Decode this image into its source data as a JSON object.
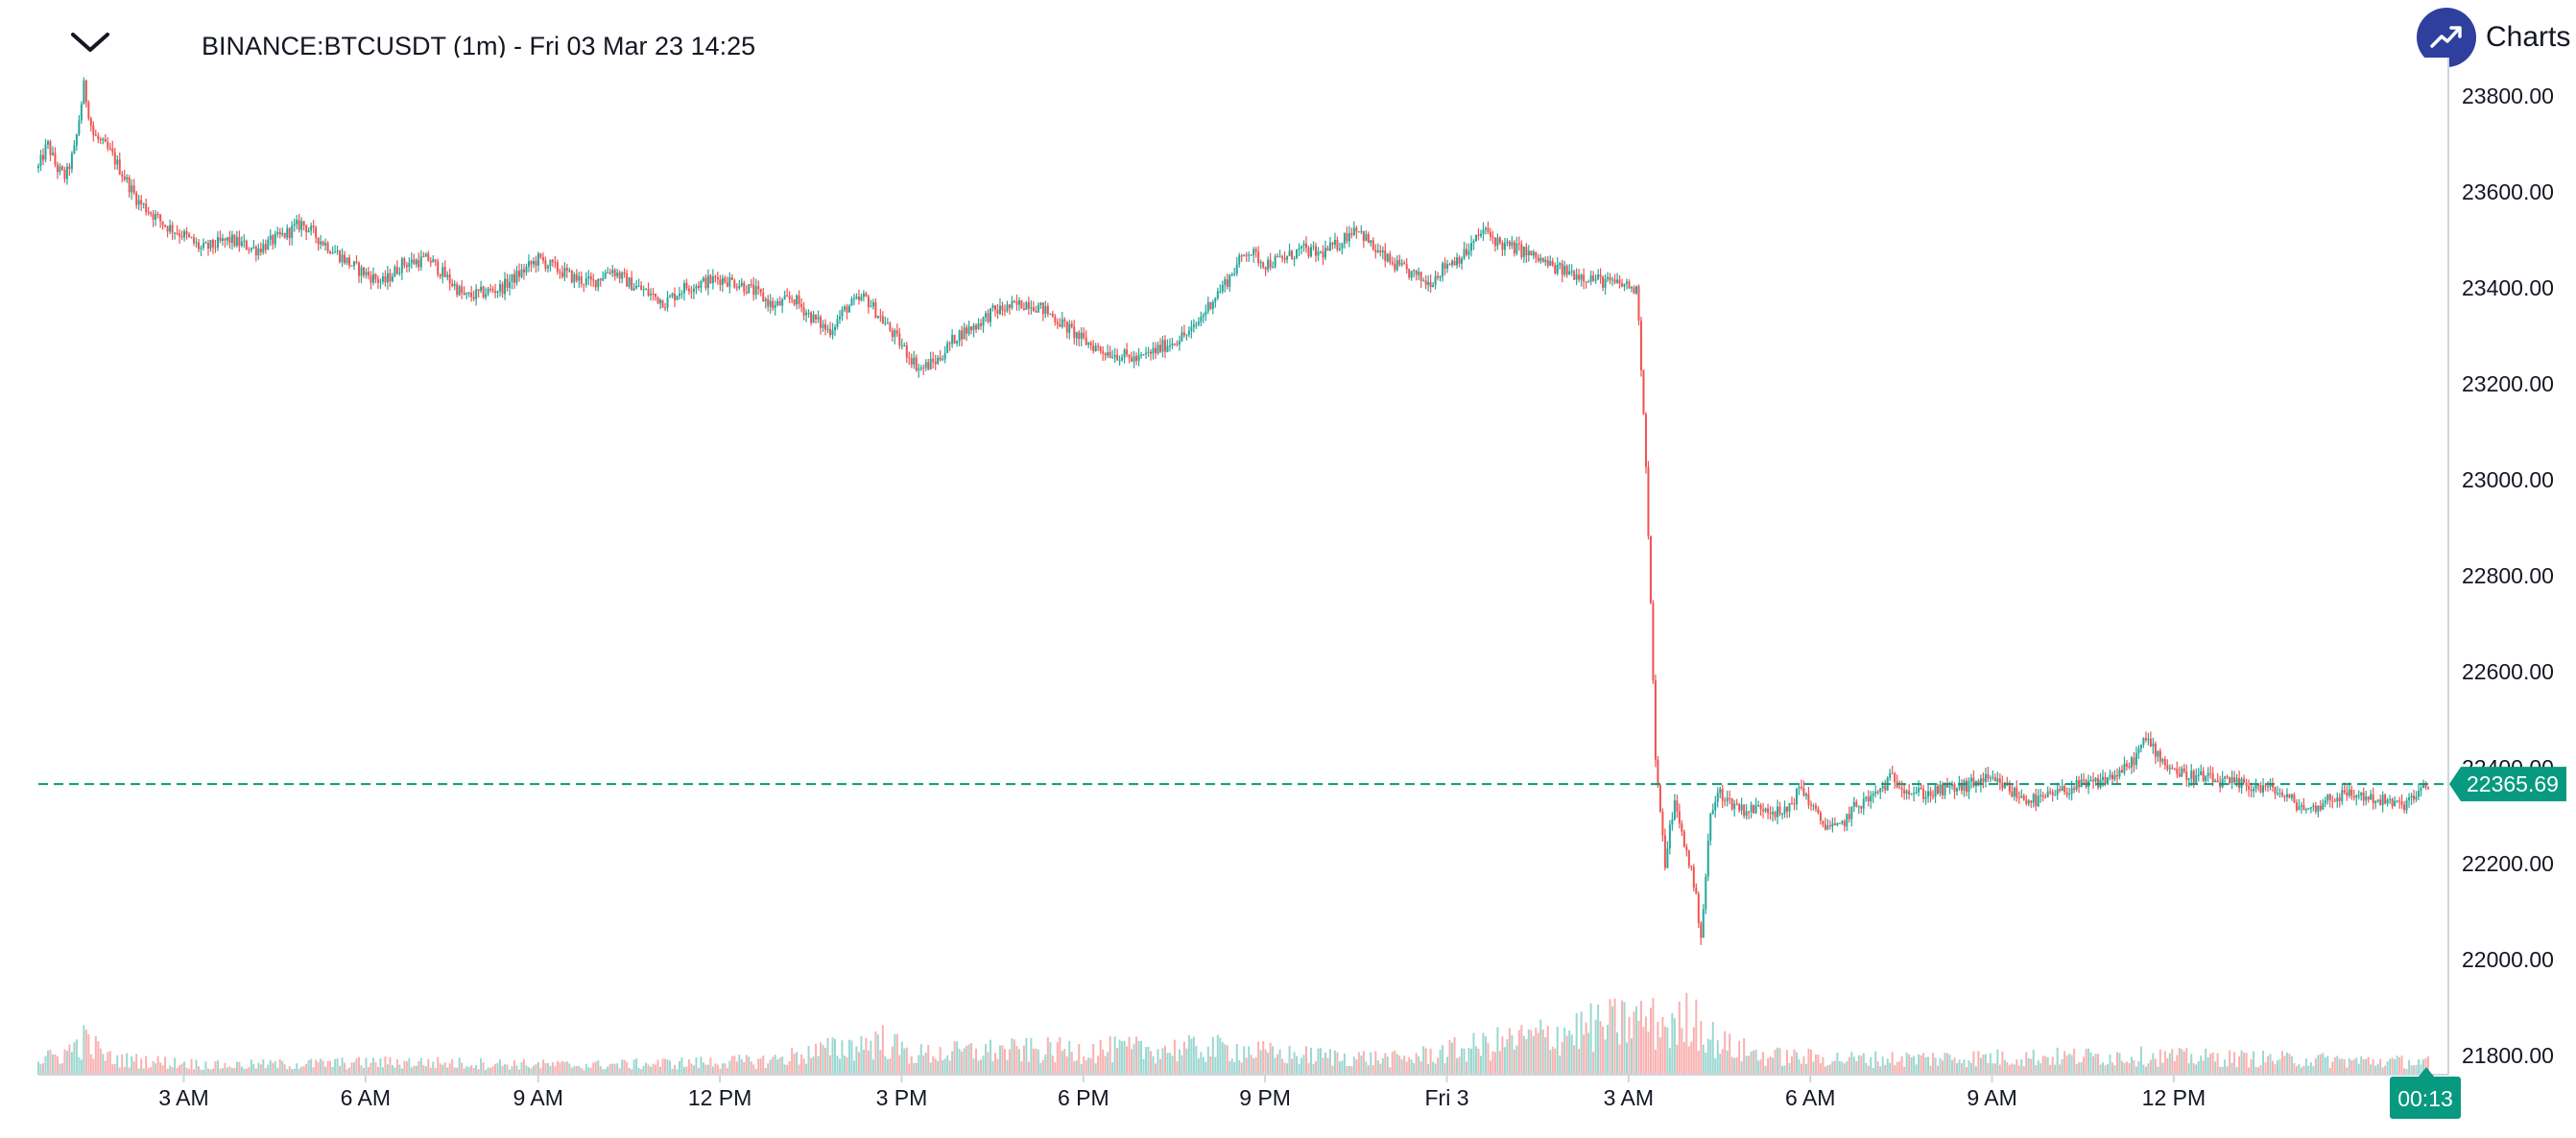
{
  "header": {
    "title": "BINANCE:BTCUSDT (1m) - Fri 03 Mar 23 14:25",
    "collapse_icon": "chevron-down-icon"
  },
  "brand": {
    "label": "Charts p",
    "icon": "trend-up-icon",
    "color": "#2e3f9e"
  },
  "colors": {
    "up": "#26a69a",
    "down": "#ef5350",
    "last_price": "#089981"
  },
  "chart_data": {
    "type": "candlestick",
    "symbol": "BINANCE:BTCUSDT",
    "interval": "1m",
    "ylim": [
      21760,
      23880
    ],
    "y_ticks": [
      "23800.00",
      "23600.00",
      "23400.00",
      "23200.00",
      "23000.00",
      "22800.00",
      "22600.00",
      "22400.00",
      "22200.00",
      "22000.00",
      "21800.00"
    ],
    "x_ticks": [
      "3 AM",
      "6 AM",
      "9 AM",
      "12 PM",
      "3 PM",
      "6 PM",
      "9 PM",
      "Fri 3",
      "3 AM",
      "6 AM",
      "9 AM",
      "12 PM"
    ],
    "last_price": 22365.69,
    "last_price_label": "22365.69",
    "countdown": "00:13",
    "price_path": [
      [
        0,
        23650
      ],
      [
        1,
        23700
      ],
      [
        2,
        23650
      ],
      [
        3,
        23630
      ],
      [
        4,
        23690
      ],
      [
        5,
        23820
      ],
      [
        6,
        23720
      ],
      [
        8,
        23680
      ],
      [
        11,
        23580
      ],
      [
        14,
        23530
      ],
      [
        16,
        23510
      ],
      [
        18,
        23480
      ],
      [
        21,
        23500
      ],
      [
        24,
        23480
      ],
      [
        27,
        23510
      ],
      [
        29,
        23535
      ],
      [
        31,
        23500
      ],
      [
        33,
        23470
      ],
      [
        35,
        23440
      ],
      [
        36,
        23430
      ],
      [
        38,
        23410
      ],
      [
        40,
        23450
      ],
      [
        43,
        23460
      ],
      [
        45,
        23420
      ],
      [
        47,
        23380
      ],
      [
        49,
        23390
      ],
      [
        51,
        23400
      ],
      [
        53,
        23430
      ],
      [
        55,
        23460
      ],
      [
        57,
        23440
      ],
      [
        59,
        23420
      ],
      [
        61,
        23410
      ],
      [
        63,
        23440
      ],
      [
        65,
        23410
      ],
      [
        67,
        23390
      ],
      [
        69,
        23370
      ],
      [
        71,
        23400
      ],
      [
        73,
        23410
      ],
      [
        75,
        23420
      ],
      [
        77,
        23410
      ],
      [
        79,
        23390
      ],
      [
        81,
        23360
      ],
      [
        83,
        23380
      ],
      [
        85,
        23340
      ],
      [
        87,
        23310
      ],
      [
        89,
        23360
      ],
      [
        91,
        23380
      ],
      [
        93,
        23330
      ],
      [
        95,
        23280
      ],
      [
        97,
        23230
      ],
      [
        99,
        23250
      ],
      [
        101,
        23300
      ],
      [
        103,
        23320
      ],
      [
        105,
        23350
      ],
      [
        107,
        23360
      ],
      [
        109,
        23370
      ],
      [
        111,
        23350
      ],
      [
        113,
        23320
      ],
      [
        115,
        23290
      ],
      [
        117,
        23270
      ],
      [
        119,
        23260
      ],
      [
        121,
        23250
      ],
      [
        123,
        23270
      ],
      [
        125,
        23290
      ],
      [
        127,
        23310
      ],
      [
        129,
        23370
      ],
      [
        131,
        23420
      ],
      [
        133,
        23480
      ],
      [
        135,
        23450
      ],
      [
        137,
        23460
      ],
      [
        139,
        23480
      ],
      [
        141,
        23470
      ],
      [
        143,
        23490
      ],
      [
        145,
        23530
      ],
      [
        147,
        23480
      ],
      [
        149,
        23450
      ],
      [
        151,
        23430
      ],
      [
        153,
        23410
      ],
      [
        155,
        23450
      ],
      [
        157,
        23470
      ],
      [
        159,
        23520
      ],
      [
        161,
        23490
      ],
      [
        163,
        23480
      ],
      [
        165,
        23460
      ],
      [
        167,
        23440
      ],
      [
        169,
        23430
      ],
      [
        171,
        23420
      ],
      [
        173,
        23410
      ],
      [
        175,
        23405
      ],
      [
        176,
        23390
      ],
      [
        177,
        23000
      ],
      [
        178,
        22400
      ],
      [
        179,
        22200
      ],
      [
        180,
        22330
      ],
      [
        181,
        22250
      ],
      [
        182,
        22180
      ],
      [
        183,
        22050
      ],
      [
        184,
        22300
      ],
      [
        185,
        22350
      ],
      [
        186,
        22330
      ],
      [
        188,
        22310
      ],
      [
        190,
        22320
      ],
      [
        192,
        22300
      ],
      [
        194,
        22360
      ],
      [
        196,
        22290
      ],
      [
        198,
        22270
      ],
      [
        200,
        22320
      ],
      [
        202,
        22340
      ],
      [
        204,
        22380
      ],
      [
        206,
        22350
      ],
      [
        208,
        22345
      ],
      [
        210,
        22355
      ],
      [
        212,
        22360
      ],
      [
        214,
        22375
      ],
      [
        216,
        22365
      ],
      [
        218,
        22340
      ],
      [
        220,
        22330
      ],
      [
        222,
        22345
      ],
      [
        224,
        22360
      ],
      [
        226,
        22365
      ],
      [
        228,
        22380
      ],
      [
        230,
        22400
      ],
      [
        232,
        22460
      ],
      [
        234,
        22410
      ],
      [
        236,
        22385
      ],
      [
        238,
        22380
      ],
      [
        240,
        22370
      ],
      [
        242,
        22365
      ],
      [
        244,
        22360
      ],
      [
        246,
        22355
      ],
      [
        248,
        22330
      ],
      [
        250,
        22310
      ],
      [
        252,
        22335
      ],
      [
        254,
        22345
      ],
      [
        256,
        22340
      ],
      [
        258,
        22330
      ],
      [
        260,
        22320
      ],
      [
        262,
        22345
      ],
      [
        263,
        22365
      ]
    ],
    "volume_path": [
      [
        0,
        0.22
      ],
      [
        3,
        0.35
      ],
      [
        5,
        0.55
      ],
      [
        8,
        0.25
      ],
      [
        20,
        0.15
      ],
      [
        40,
        0.2
      ],
      [
        60,
        0.15
      ],
      [
        80,
        0.22
      ],
      [
        93,
        0.55
      ],
      [
        96,
        0.32
      ],
      [
        104,
        0.38
      ],
      [
        131,
        0.42
      ],
      [
        137,
        0.32
      ],
      [
        150,
        0.25
      ],
      [
        177,
        0.9
      ],
      [
        178,
        0.8
      ],
      [
        179,
        0.85
      ],
      [
        180,
        0.7
      ],
      [
        182,
        1.0
      ],
      [
        184,
        0.6
      ],
      [
        186,
        0.45
      ],
      [
        190,
        0.3
      ],
      [
        200,
        0.25
      ],
      [
        230,
        0.3
      ],
      [
        263,
        0.2
      ]
    ]
  }
}
